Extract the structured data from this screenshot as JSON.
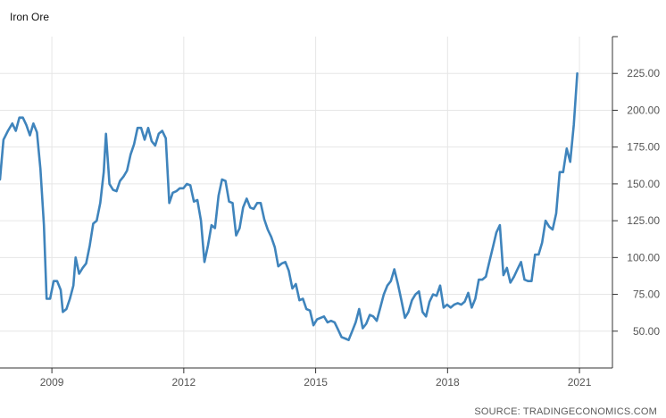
{
  "chart_data": {
    "type": "line",
    "title": "Iron Ore",
    "source": "SOURCE: TRADINGECONOMICS.COM",
    "xlabel": "",
    "ylabel": "",
    "line_color": "#3f84bc",
    "grid": true,
    "x_ticks": [
      {
        "year": 2009,
        "label": "2009"
      },
      {
        "year": 2012,
        "label": "2012"
      },
      {
        "year": 2015,
        "label": "2015"
      },
      {
        "year": 2018,
        "label": "2018"
      },
      {
        "year": 2021,
        "label": "2021"
      }
    ],
    "y_ticks": [
      {
        "value": 50,
        "label": "50.00"
      },
      {
        "value": 75,
        "label": "75.00"
      },
      {
        "value": 100,
        "label": "100.00"
      },
      {
        "value": 125,
        "label": "125.00"
      },
      {
        "value": 150,
        "label": "150.00"
      },
      {
        "value": 175,
        "label": "175.00"
      },
      {
        "value": 200,
        "label": "200.00"
      },
      {
        "value": 225,
        "label": "225.00"
      }
    ],
    "ylim": [
      25,
      250
    ],
    "xlim": [
      2007.82,
      2021.75
    ],
    "series": [
      {
        "points": [
          [
            2007.82,
            153
          ],
          [
            2007.9,
            180
          ],
          [
            2008.0,
            186
          ],
          [
            2008.1,
            191
          ],
          [
            2008.18,
            186
          ],
          [
            2008.26,
            195
          ],
          [
            2008.34,
            195
          ],
          [
            2008.42,
            190
          ],
          [
            2008.5,
            183
          ],
          [
            2008.58,
            191
          ],
          [
            2008.66,
            185
          ],
          [
            2008.74,
            160
          ],
          [
            2008.82,
            122
          ],
          [
            2008.88,
            72
          ],
          [
            2008.96,
            72
          ],
          [
            2009.04,
            84
          ],
          [
            2009.12,
            84
          ],
          [
            2009.2,
            78
          ],
          [
            2009.25,
            63
          ],
          [
            2009.33,
            65
          ],
          [
            2009.41,
            72
          ],
          [
            2009.49,
            81
          ],
          [
            2009.54,
            100
          ],
          [
            2009.62,
            89
          ],
          [
            2009.7,
            93
          ],
          [
            2009.78,
            96
          ],
          [
            2009.86,
            108
          ],
          [
            2009.94,
            123
          ],
          [
            2010.02,
            125
          ],
          [
            2010.1,
            137
          ],
          [
            2010.18,
            158
          ],
          [
            2010.23,
            184
          ],
          [
            2010.31,
            150
          ],
          [
            2010.39,
            146
          ],
          [
            2010.47,
            145
          ],
          [
            2010.55,
            152
          ],
          [
            2010.63,
            155
          ],
          [
            2010.71,
            159
          ],
          [
            2010.79,
            170
          ],
          [
            2010.87,
            177
          ],
          [
            2010.95,
            188
          ],
          [
            2011.03,
            188
          ],
          [
            2011.11,
            180
          ],
          [
            2011.19,
            188
          ],
          [
            2011.27,
            179
          ],
          [
            2011.35,
            176
          ],
          [
            2011.43,
            184
          ],
          [
            2011.51,
            186
          ],
          [
            2011.59,
            181
          ],
          [
            2011.67,
            137
          ],
          [
            2011.75,
            144
          ],
          [
            2011.83,
            145
          ],
          [
            2011.91,
            147
          ],
          [
            2011.99,
            147
          ],
          [
            2012.07,
            150
          ],
          [
            2012.15,
            149
          ],
          [
            2012.23,
            138
          ],
          [
            2012.31,
            139
          ],
          [
            2012.39,
            125
          ],
          [
            2012.47,
            97
          ],
          [
            2012.55,
            108
          ],
          [
            2012.63,
            122
          ],
          [
            2012.71,
            120
          ],
          [
            2012.79,
            142
          ],
          [
            2012.87,
            153
          ],
          [
            2012.95,
            152
          ],
          [
            2013.03,
            138
          ],
          [
            2013.11,
            137
          ],
          [
            2013.19,
            115
          ],
          [
            2013.27,
            120
          ],
          [
            2013.35,
            134
          ],
          [
            2013.43,
            140
          ],
          [
            2013.51,
            134
          ],
          [
            2013.59,
            133
          ],
          [
            2013.67,
            137
          ],
          [
            2013.75,
            137
          ],
          [
            2013.83,
            126
          ],
          [
            2013.91,
            119
          ],
          [
            2013.99,
            114
          ],
          [
            2014.07,
            107
          ],
          [
            2014.15,
            94
          ],
          [
            2014.23,
            96
          ],
          [
            2014.31,
            97
          ],
          [
            2014.39,
            91
          ],
          [
            2014.47,
            79
          ],
          [
            2014.55,
            82
          ],
          [
            2014.63,
            71
          ],
          [
            2014.71,
            72
          ],
          [
            2014.79,
            65
          ],
          [
            2014.87,
            64
          ],
          [
            2014.95,
            54
          ],
          [
            2015.03,
            58
          ],
          [
            2015.11,
            59
          ],
          [
            2015.19,
            60
          ],
          [
            2015.27,
            56
          ],
          [
            2015.35,
            57
          ],
          [
            2015.43,
            56
          ],
          [
            2015.51,
            51
          ],
          [
            2015.59,
            46
          ],
          [
            2015.67,
            45
          ],
          [
            2015.75,
            44
          ],
          [
            2015.83,
            50
          ],
          [
            2015.91,
            56
          ],
          [
            2015.99,
            65
          ],
          [
            2016.07,
            52
          ],
          [
            2016.15,
            55
          ],
          [
            2016.23,
            61
          ],
          [
            2016.31,
            60
          ],
          [
            2016.39,
            57
          ],
          [
            2016.47,
            66
          ],
          [
            2016.55,
            75
          ],
          [
            2016.63,
            81
          ],
          [
            2016.71,
            84
          ],
          [
            2016.79,
            92
          ],
          [
            2016.87,
            82
          ],
          [
            2016.95,
            71
          ],
          [
            2017.03,
            59
          ],
          [
            2017.11,
            63
          ],
          [
            2017.19,
            71
          ],
          [
            2017.27,
            75
          ],
          [
            2017.35,
            77
          ],
          [
            2017.43,
            63
          ],
          [
            2017.51,
            60
          ],
          [
            2017.59,
            70
          ],
          [
            2017.67,
            75
          ],
          [
            2017.75,
            74
          ],
          [
            2017.83,
            81
          ],
          [
            2017.91,
            66
          ],
          [
            2017.99,
            68
          ],
          [
            2018.07,
            66
          ],
          [
            2018.15,
            68
          ],
          [
            2018.23,
            69
          ],
          [
            2018.31,
            68
          ],
          [
            2018.39,
            70
          ],
          [
            2018.47,
            76
          ],
          [
            2018.55,
            66
          ],
          [
            2018.63,
            72
          ],
          [
            2018.71,
            85
          ],
          [
            2018.79,
            85
          ],
          [
            2018.87,
            87
          ],
          [
            2018.95,
            97
          ],
          [
            2019.03,
            107
          ],
          [
            2019.11,
            117
          ],
          [
            2019.19,
            122
          ],
          [
            2019.27,
            88
          ],
          [
            2019.35,
            93
          ],
          [
            2019.43,
            83
          ],
          [
            2019.51,
            87
          ],
          [
            2019.59,
            92
          ],
          [
            2019.67,
            97
          ],
          [
            2019.75,
            85
          ],
          [
            2019.83,
            84
          ],
          [
            2019.91,
            84
          ],
          [
            2019.99,
            102
          ],
          [
            2020.07,
            102
          ],
          [
            2020.15,
            110
          ],
          [
            2020.23,
            125
          ],
          [
            2020.31,
            121
          ],
          [
            2020.39,
            119
          ],
          [
            2020.47,
            130
          ],
          [
            2020.55,
            158
          ],
          [
            2020.63,
            158
          ],
          [
            2020.71,
            174
          ],
          [
            2020.79,
            165
          ],
          [
            2020.87,
            190
          ],
          [
            2020.95,
            225
          ]
        ]
      }
    ]
  }
}
